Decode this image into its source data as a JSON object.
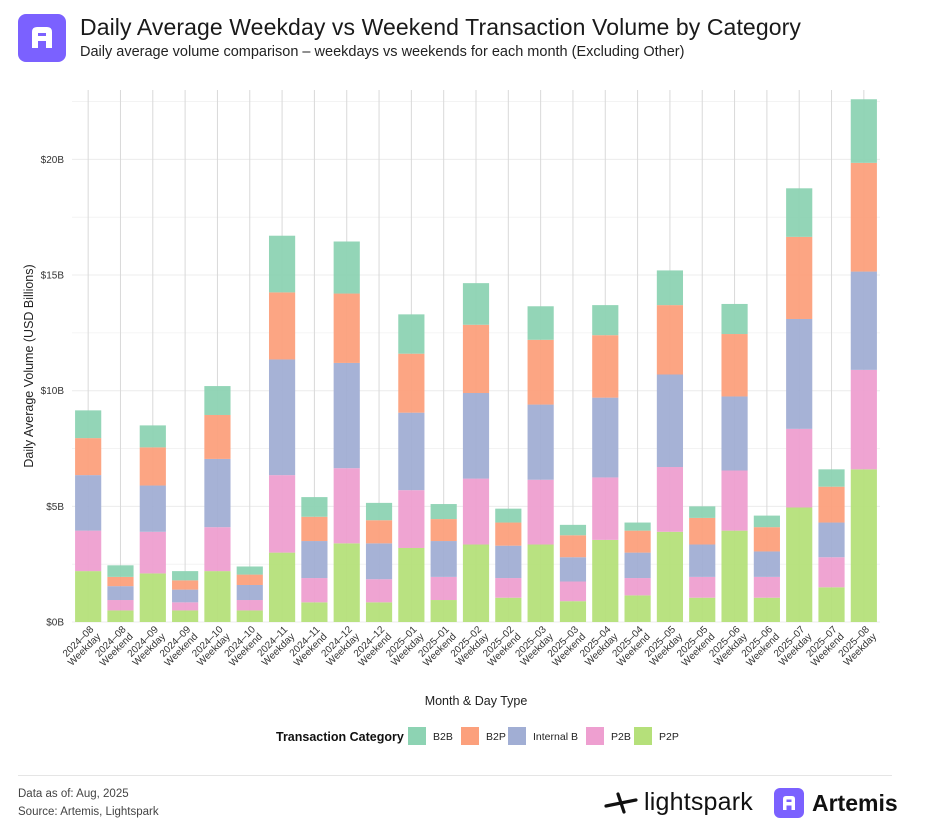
{
  "header": {
    "title": "Daily Average Weekday vs Weekend Transaction Volume by Category",
    "subtitle": "Daily average volume comparison – weekdays vs weekends for each month (Excluding Other)"
  },
  "footer": {
    "data_as_of": "Data as of: Aug, 2025",
    "source": "Source: Artemis, Lightspark",
    "brand1": "lightspark",
    "brand2": "Artemis"
  },
  "colors": {
    "B2B": "#8dd3b3",
    "B2P": "#fca07c",
    "Internal B": "#a1aed4",
    "P2B": "#ee9fd0",
    "P2P": "#b5e07a",
    "brand_purple": "#7b61ff"
  },
  "chart_data": {
    "type": "bar",
    "stacked": true,
    "xlabel": "Month & Day Type",
    "ylabel": "Daily Average Volume (USD Billions)",
    "ylim": [
      0,
      23
    ],
    "yticks": [
      0,
      5,
      10,
      15,
      20
    ],
    "ytick_labels": [
      "$0B",
      "$5B",
      "$10B",
      "$15B",
      "$20B"
    ],
    "legend_title": "Transaction Category",
    "legend_position": "bottom",
    "categories": [
      "2024-08 Weekday",
      "2024-08 Weekend",
      "2024-09 Weekday",
      "2024-09 Weekend",
      "2024-10 Weekday",
      "2024-10 Weekend",
      "2024-11 Weekday",
      "2024-11 Weekend",
      "2024-12 Weekday",
      "2024-12 Weekend",
      "2025-01 Weekday",
      "2025-01 Weekend",
      "2025-02 Weekday",
      "2025-02 Weekend",
      "2025-03 Weekday",
      "2025-03 Weekend",
      "2025-04 Weekday",
      "2025-04 Weekend",
      "2025-05 Weekday",
      "2025-05 Weekend",
      "2025-06 Weekday",
      "2025-06 Weekend",
      "2025-07 Weekday",
      "2025-07 Weekend",
      "2025-08 Weekday"
    ],
    "tick_labels": [
      [
        "2024–08",
        "Weekday"
      ],
      [
        "2024–08",
        "Weekend"
      ],
      [
        "2024–09",
        "Weekday"
      ],
      [
        "2024–09",
        "Weekend"
      ],
      [
        "2024–10",
        "Weekday"
      ],
      [
        "2024–10",
        "Weekend"
      ],
      [
        "2024–11",
        "Weekday"
      ],
      [
        "2024–11",
        "Weekend"
      ],
      [
        "2024–12",
        "Weekday"
      ],
      [
        "2024–12",
        "Weekend"
      ],
      [
        "2025–01",
        "Weekday"
      ],
      [
        "2025–01",
        "Weekend"
      ],
      [
        "2025–02",
        "Weekday"
      ],
      [
        "2025–02",
        "Weekend"
      ],
      [
        "2025–03",
        "Weekday"
      ],
      [
        "2025–03",
        "Weekend"
      ],
      [
        "2025–04",
        "Weekday"
      ],
      [
        "2025–04",
        "Weekend"
      ],
      [
        "2025–05",
        "Weekday"
      ],
      [
        "2025–05",
        "Weekend"
      ],
      [
        "2025–06",
        "Weekday"
      ],
      [
        "2025–06",
        "Weekend"
      ],
      [
        "2025–07",
        "Weekday"
      ],
      [
        "2025–07",
        "Weekend"
      ],
      [
        "2025–08",
        "Weekday"
      ]
    ],
    "series": [
      {
        "name": "P2P",
        "values": [
          2.2,
          0.5,
          2.1,
          0.5,
          2.2,
          0.5,
          3.0,
          0.85,
          3.4,
          0.85,
          3.2,
          0.95,
          3.35,
          1.05,
          3.35,
          0.9,
          3.55,
          1.15,
          3.9,
          1.05,
          3.95,
          1.05,
          4.95,
          1.5,
          6.6
        ]
      },
      {
        "name": "P2B",
        "values": [
          1.75,
          0.45,
          1.8,
          0.35,
          1.9,
          0.45,
          3.35,
          1.05,
          3.25,
          1.0,
          2.5,
          1.0,
          2.85,
          0.85,
          2.8,
          0.85,
          2.7,
          0.75,
          2.8,
          0.9,
          2.6,
          0.9,
          3.4,
          1.3,
          4.3
        ]
      },
      {
        "name": "Internal B",
        "values": [
          2.4,
          0.6,
          2.0,
          0.55,
          2.95,
          0.65,
          5.0,
          1.6,
          4.55,
          1.55,
          3.35,
          1.55,
          3.7,
          1.4,
          3.25,
          1.05,
          3.45,
          1.1,
          4.0,
          1.4,
          3.2,
          1.1,
          4.75,
          1.5,
          4.25
        ]
      },
      {
        "name": "B2P",
        "values": [
          1.6,
          0.4,
          1.65,
          0.4,
          1.9,
          0.45,
          2.9,
          1.05,
          3.0,
          1.0,
          2.55,
          0.95,
          2.95,
          1.0,
          2.8,
          0.95,
          2.7,
          0.95,
          3.0,
          1.15,
          2.7,
          1.05,
          3.55,
          1.55,
          4.7
        ]
      },
      {
        "name": "B2B",
        "values": [
          1.2,
          0.5,
          0.95,
          0.4,
          1.25,
          0.35,
          2.45,
          0.85,
          2.25,
          0.75,
          1.7,
          0.65,
          1.8,
          0.6,
          1.45,
          0.45,
          1.3,
          0.35,
          1.5,
          0.5,
          1.3,
          0.5,
          2.1,
          0.75,
          2.75
        ]
      }
    ],
    "legend_order": [
      "B2B",
      "B2P",
      "Internal B",
      "P2B",
      "P2P"
    ]
  }
}
